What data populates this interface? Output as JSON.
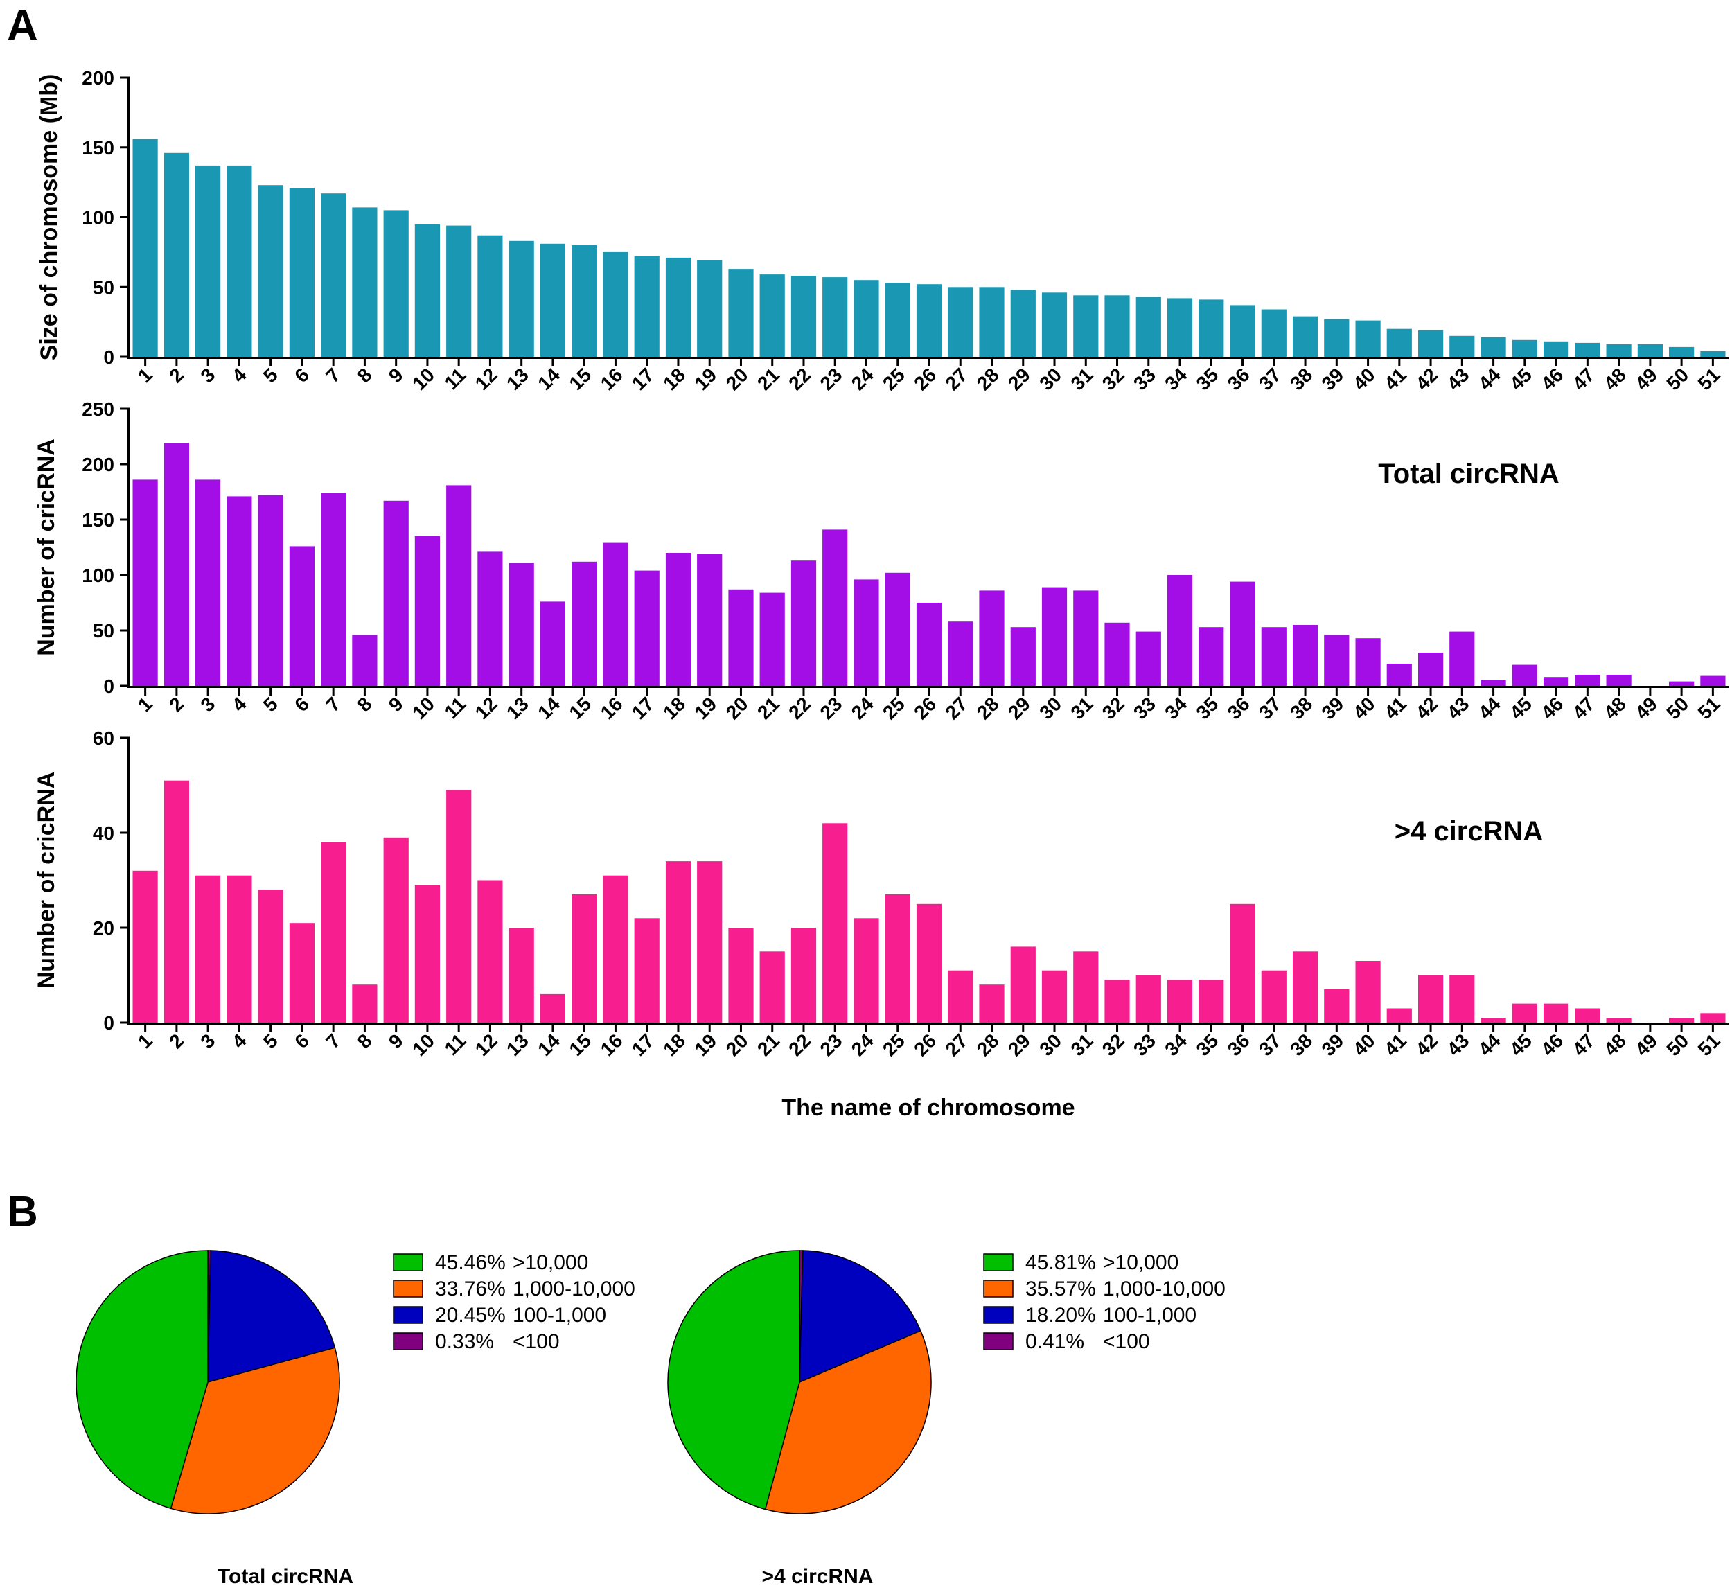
{
  "panel_labels": [
    "A",
    "B"
  ],
  "chart_data": [
    {
      "type": "bar",
      "panel": "A",
      "title": "",
      "series_label": "",
      "ylabel": "Size of chromosome (Mb)",
      "xlabel": "",
      "ylim": [
        0,
        200
      ],
      "yticks": [
        0,
        50,
        100,
        150,
        200
      ],
      "color": "#1a98b3",
      "categories": [
        "1",
        "2",
        "3",
        "4",
        "5",
        "6",
        "7",
        "8",
        "9",
        "10",
        "11",
        "12",
        "13",
        "14",
        "15",
        "16",
        "17",
        "18",
        "19",
        "20",
        "21",
        "22",
        "23",
        "24",
        "25",
        "26",
        "27",
        "28",
        "29",
        "30",
        "31",
        "32",
        "33",
        "34",
        "35",
        "36",
        "37",
        "38",
        "39",
        "40",
        "41",
        "42",
        "43",
        "44",
        "45",
        "46",
        "47",
        "48",
        "49",
        "50",
        "51"
      ],
      "values": [
        156,
        146,
        137,
        137,
        123,
        121,
        117,
        107,
        105,
        95,
        94,
        87,
        83,
        81,
        80,
        75,
        72,
        71,
        69,
        63,
        59,
        58,
        57,
        55,
        53,
        52,
        50,
        50,
        48,
        46,
        44,
        44,
        43,
        42,
        41,
        37,
        34,
        29,
        27,
        26,
        20,
        19,
        15,
        14,
        12,
        11,
        10,
        9,
        9,
        7,
        4
      ]
    },
    {
      "type": "bar",
      "panel": "A",
      "title": "",
      "series_label": "Total circRNA",
      "ylabel": "Number of cricRNA",
      "xlabel": "",
      "ylim": [
        0,
        250
      ],
      "yticks": [
        0,
        50,
        100,
        150,
        200,
        250
      ],
      "color": "#a30de6",
      "categories": [
        "1",
        "2",
        "3",
        "4",
        "5",
        "6",
        "7",
        "8",
        "9",
        "10",
        "11",
        "12",
        "13",
        "14",
        "15",
        "16",
        "17",
        "18",
        "19",
        "20",
        "21",
        "22",
        "23",
        "24",
        "25",
        "26",
        "27",
        "28",
        "29",
        "30",
        "31",
        "32",
        "33",
        "34",
        "35",
        "36",
        "37",
        "38",
        "39",
        "40",
        "41",
        "42",
        "43",
        "44",
        "45",
        "46",
        "47",
        "48",
        "49",
        "50",
        "51"
      ],
      "values": [
        186,
        219,
        186,
        171,
        172,
        126,
        174,
        46,
        167,
        135,
        181,
        121,
        111,
        76,
        112,
        129,
        104,
        120,
        119,
        87,
        84,
        113,
        141,
        96,
        102,
        75,
        58,
        86,
        53,
        89,
        86,
        57,
        49,
        100,
        53,
        94,
        53,
        55,
        46,
        43,
        20,
        30,
        49,
        5,
        19,
        8,
        10,
        10,
        0,
        4,
        9
      ]
    },
    {
      "type": "bar",
      "panel": "A",
      "title": "",
      "series_label": ">4 circRNA",
      "ylabel": "Number of cricRNA",
      "xlabel": "The name of chromosome",
      "ylim": [
        0,
        60
      ],
      "yticks": [
        0,
        20,
        40,
        60
      ],
      "color": "#f71e8f",
      "categories": [
        "1",
        "2",
        "3",
        "4",
        "5",
        "6",
        "7",
        "8",
        "9",
        "10",
        "11",
        "12",
        "13",
        "14",
        "15",
        "16",
        "17",
        "18",
        "19",
        "20",
        "21",
        "22",
        "23",
        "24",
        "25",
        "26",
        "27",
        "28",
        "29",
        "30",
        "31",
        "32",
        "33",
        "34",
        "35",
        "36",
        "37",
        "38",
        "39",
        "40",
        "41",
        "42",
        "43",
        "44",
        "45",
        "46",
        "47",
        "48",
        "49",
        "50",
        "51"
      ],
      "values": [
        32,
        51,
        31,
        31,
        28,
        21,
        38,
        8,
        39,
        29,
        49,
        30,
        20,
        6,
        27,
        31,
        22,
        34,
        34,
        20,
        15,
        20,
        42,
        22,
        27,
        25,
        11,
        8,
        16,
        11,
        15,
        9,
        10,
        9,
        9,
        25,
        11,
        15,
        7,
        13,
        3,
        10,
        10,
        1,
        4,
        4,
        3,
        1,
        0,
        1,
        2
      ]
    },
    {
      "type": "pie",
      "panel": "B",
      "title": "Total circRNA",
      "slices": [
        {
          "label": ">10,000",
          "pct_text": "45.46%",
          "value": 45.46,
          "color": "#00bf00"
        },
        {
          "label": "1,000-10,000",
          "pct_text": "33.76%",
          "value": 33.76,
          "color": "#ff6600"
        },
        {
          "label": "100-1,000",
          "pct_text": "20.45%",
          "value": 20.45,
          "color": "#0000bf"
        },
        {
          "label": "<100",
          "pct_text": "0.33%",
          "value": 0.33,
          "color": "#800080"
        }
      ]
    },
    {
      "type": "pie",
      "panel": "B",
      "title": ">4 circRNA",
      "slices": [
        {
          "label": ">10,000",
          "pct_text": "45.81%",
          "value": 45.81,
          "color": "#00bf00"
        },
        {
          "label": "1,000-10,000",
          "pct_text": "35.57%",
          "value": 35.57,
          "color": "#ff6600"
        },
        {
          "label": "100-1,000",
          "pct_text": "18.20%",
          "value": 18.2,
          "color": "#0000bf"
        },
        {
          "label": "<100",
          "pct_text": "0.41%",
          "value": 0.41,
          "color": "#800080"
        }
      ]
    }
  ]
}
